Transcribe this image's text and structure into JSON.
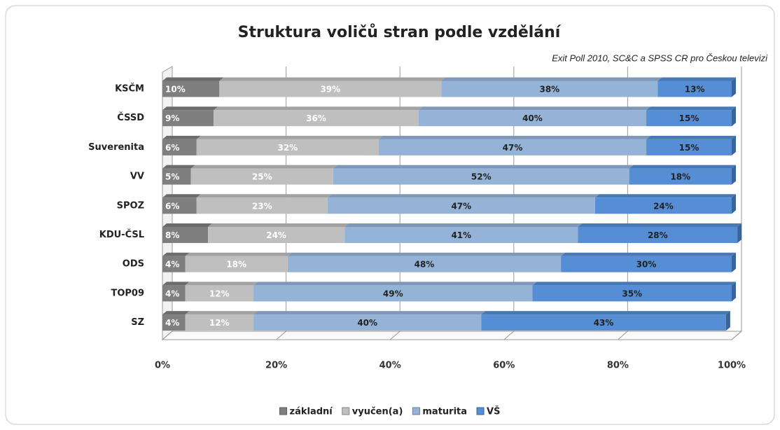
{
  "chart_data": {
    "type": "bar",
    "orientation": "horizontal",
    "stacked": true,
    "title": "Struktura voličů stran podle vzdělání",
    "subtitle": "Exit Poll 2010, SC&C a SPSS CR pro Českou televizi",
    "categories": [
      "KSČM",
      "ČSSD",
      "Suverenita",
      "VV",
      "SPOZ",
      "KDU-ČSL",
      "ODS",
      "TOP09",
      "SZ"
    ],
    "series": [
      {
        "name": "základní",
        "color": "#7f7f7f",
        "values": [
          10,
          9,
          6,
          5,
          6,
          8,
          4,
          4,
          4
        ],
        "value_labels": [
          "10%",
          "9%",
          "6%",
          "5%",
          "6%",
          "8%",
          "4%",
          "4%",
          "4%"
        ]
      },
      {
        "name": "vyučen(a)",
        "color": "#bfbfbf",
        "values": [
          39,
          36,
          32,
          25,
          23,
          24,
          18,
          12,
          12
        ],
        "value_labels": [
          "39%",
          "36%",
          "32%",
          "25%",
          "23%",
          "24%",
          "18%",
          "12%",
          "12%"
        ]
      },
      {
        "name": "maturita",
        "color": "#95b3d7",
        "values": [
          38,
          40,
          47,
          52,
          47,
          41,
          48,
          49,
          40
        ],
        "value_labels": [
          "38%",
          "40%",
          "47%",
          "52%",
          "47%",
          "41%",
          "48%",
          "49%",
          "40%"
        ]
      },
      {
        "name": "VŠ",
        "color": "#558ed5",
        "values": [
          13,
          15,
          15,
          18,
          24,
          28,
          30,
          35,
          43
        ],
        "value_labels": [
          "13%",
          "15%",
          "15%",
          "18%",
          "24%",
          "28%",
          "30%",
          "35%",
          "43%"
        ]
      }
    ],
    "xlim": [
      0,
      100
    ],
    "xticks": [
      {
        "value": 0,
        "label": "0%"
      },
      {
        "value": 20,
        "label": "20%"
      },
      {
        "value": 40,
        "label": "40%"
      },
      {
        "value": 60,
        "label": "60%"
      },
      {
        "value": 80,
        "label": "80%"
      },
      {
        "value": 100,
        "label": "100%"
      }
    ],
    "grid": true,
    "legend": "bottom"
  }
}
